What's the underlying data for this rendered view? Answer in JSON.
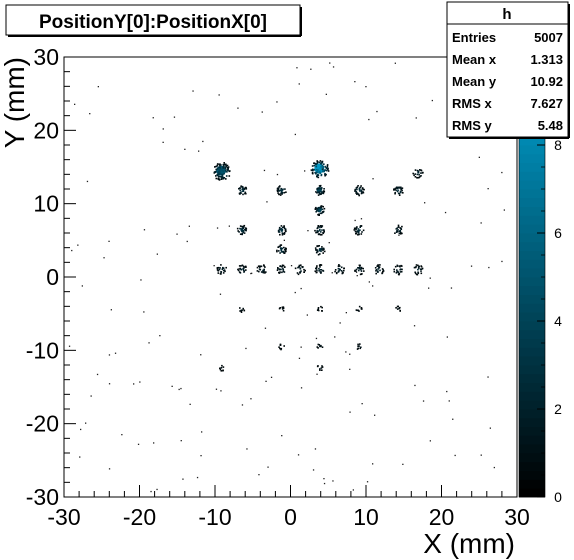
{
  "title": "PositionY[0]:PositionX[0]",
  "stats": {
    "name": "h",
    "rows": [
      {
        "label": "Entries",
        "value": "5007"
      },
      {
        "label": "Mean x",
        "value": "1.313"
      },
      {
        "label": "Mean y",
        "value": "10.92"
      },
      {
        "label": "RMS x",
        "value": "7.627"
      },
      {
        "label": "RMS y",
        "value": "5.48"
      }
    ]
  },
  "chart_data": {
    "type": "heatmap",
    "title": "PositionY[0]:PositionX[0]",
    "xlabel": "X (mm)",
    "ylabel": "Y (mm)",
    "xlim": [
      -30,
      30
    ],
    "ylim": [
      -30,
      30
    ],
    "xticks": [
      -30,
      -20,
      -10,
      0,
      10,
      20,
      30
    ],
    "yticks": [
      -30,
      -20,
      -10,
      0,
      10,
      20,
      30
    ],
    "zlim": [
      0,
      10
    ],
    "zticks": [
      0,
      2,
      4,
      6,
      8
    ],
    "palette": [
      "#000000",
      "#003040",
      "#005c7a",
      "#0089b3",
      "#00aadd"
    ],
    "clusters": [
      {
        "x": -9.2,
        "y": 14.5,
        "z": 5
      },
      {
        "x": 3.8,
        "y": 14.8,
        "z": 9
      },
      {
        "x": 16.8,
        "y": 14.3,
        "z": 2
      },
      {
        "x": -6.5,
        "y": 11.9,
        "z": 3
      },
      {
        "x": -1.3,
        "y": 11.9,
        "z": 3
      },
      {
        "x": 3.8,
        "y": 11.9,
        "z": 4
      },
      {
        "x": 9.0,
        "y": 11.9,
        "z": 3
      },
      {
        "x": 14.2,
        "y": 11.9,
        "z": 3
      },
      {
        "x": 3.8,
        "y": 9.2,
        "z": 4
      },
      {
        "x": -6.5,
        "y": 6.5,
        "z": 3
      },
      {
        "x": -1.3,
        "y": 6.5,
        "z": 3
      },
      {
        "x": 3.8,
        "y": 6.5,
        "z": 3
      },
      {
        "x": 9.0,
        "y": 6.5,
        "z": 3
      },
      {
        "x": 14.2,
        "y": 6.5,
        "z": 2
      },
      {
        "x": -1.3,
        "y": 3.8,
        "z": 3
      },
      {
        "x": 3.8,
        "y": 3.8,
        "z": 3
      },
      {
        "x": -9.2,
        "y": 1.1,
        "z": 2
      },
      {
        "x": -6.5,
        "y": 1.1,
        "z": 2
      },
      {
        "x": -3.9,
        "y": 1.1,
        "z": 2
      },
      {
        "x": -1.3,
        "y": 1.1,
        "z": 2
      },
      {
        "x": 1.2,
        "y": 1.1,
        "z": 2
      },
      {
        "x": 3.8,
        "y": 1.1,
        "z": 2
      },
      {
        "x": 6.4,
        "y": 1.1,
        "z": 2
      },
      {
        "x": 9.0,
        "y": 1.1,
        "z": 2
      },
      {
        "x": 11.6,
        "y": 1.1,
        "z": 2
      },
      {
        "x": 14.2,
        "y": 1.1,
        "z": 2
      },
      {
        "x": 16.8,
        "y": 1.1,
        "z": 2
      },
      {
        "x": -6.5,
        "y": -4.3,
        "z": 1
      },
      {
        "x": -1.3,
        "y": -4.3,
        "z": 1
      },
      {
        "x": 3.8,
        "y": -4.3,
        "z": 1
      },
      {
        "x": 9.0,
        "y": -4.3,
        "z": 1
      },
      {
        "x": 14.2,
        "y": -4.3,
        "z": 1
      },
      {
        "x": -1.3,
        "y": -9.4,
        "z": 1
      },
      {
        "x": 3.8,
        "y": -9.4,
        "z": 1
      },
      {
        "x": 9.0,
        "y": -9.4,
        "z": 1
      },
      {
        "x": -9.2,
        "y": -12.3,
        "z": 1
      },
      {
        "x": 3.8,
        "y": -12.3,
        "z": 1
      }
    ]
  }
}
